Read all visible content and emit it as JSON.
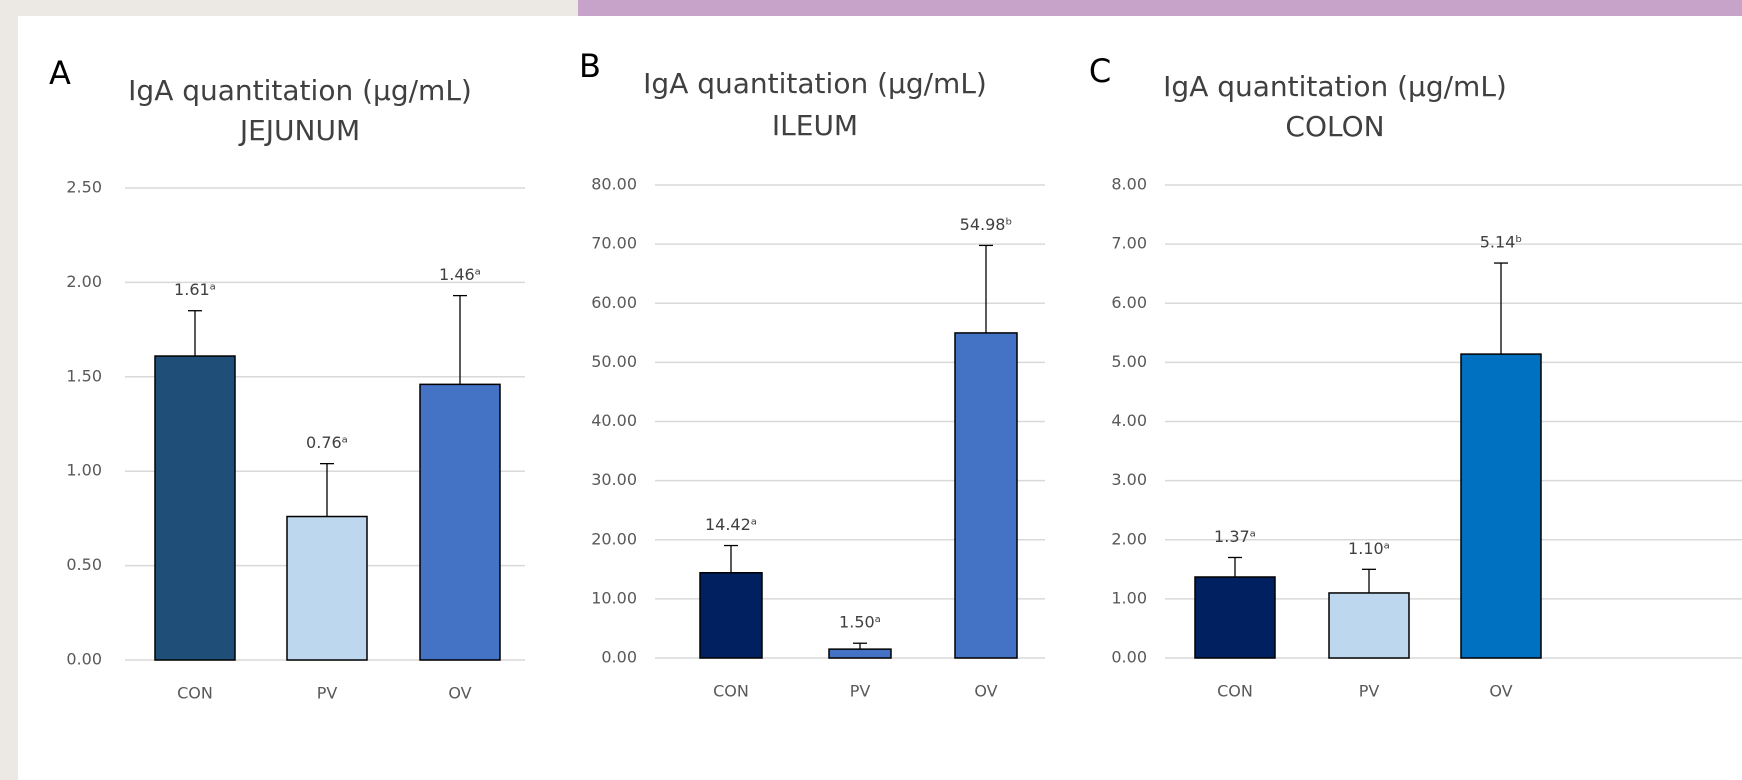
{
  "chart_data": [
    {
      "type": "bar",
      "panel_label": "A",
      "title": "IgA quantitation (µg/mL)",
      "subtitle": "JEJUNUM",
      "categories": [
        "CON",
        "PV",
        "OV"
      ],
      "values": [
        1.61,
        0.76,
        1.46
      ],
      "value_labels": [
        "1.61ᵃ",
        "0.76ᵃ",
        "1.46ᵃ"
      ],
      "errors": [
        0.24,
        0.28,
        0.47
      ],
      "colors": [
        "#1f4e79",
        "#bdd7ee",
        "#4472c4"
      ],
      "ylim": [
        0,
        2.5
      ],
      "yticks": [
        {
          "value": 0,
          "label": "0.00"
        },
        {
          "value": 0.5,
          "label": "0.50"
        },
        {
          "value": 1,
          "label": "1.00"
        },
        {
          "value": 1.5,
          "label": "1.50"
        },
        {
          "value": 2,
          "label": "2.00"
        },
        {
          "value": 2.5,
          "label": "2.50"
        }
      ],
      "grid": true
    },
    {
      "type": "bar",
      "panel_label": "B",
      "title": "IgA quantitation (µg/mL)",
      "subtitle": "ILEUM",
      "categories": [
        "CON",
        "PV",
        "OV"
      ],
      "values": [
        14.42,
        1.5,
        54.98
      ],
      "value_labels": [
        "14.42ᵃ",
        "1.50ᵃ",
        "54.98ᵇ"
      ],
      "errors": [
        4.6,
        1.0,
        14.8
      ],
      "colors": [
        "#002060",
        "#4472c4",
        "#4472c4"
      ],
      "ylim": [
        0,
        80
      ],
      "yticks": [
        {
          "value": 0,
          "label": "0.00"
        },
        {
          "value": 10,
          "label": "10.00"
        },
        {
          "value": 20,
          "label": "20.00"
        },
        {
          "value": 30,
          "label": "30.00"
        },
        {
          "value": 40,
          "label": "40.00"
        },
        {
          "value": 50,
          "label": "50.00"
        },
        {
          "value": 60,
          "label": "60.00"
        },
        {
          "value": 70,
          "label": "70.00"
        },
        {
          "value": 80,
          "label": "80.00"
        }
      ],
      "grid": true
    },
    {
      "type": "bar",
      "panel_label": "C",
      "title": "IgA quantitation (µg/mL)",
      "subtitle": "COLON",
      "categories": [
        "CON",
        "PV",
        "OV"
      ],
      "values": [
        1.37,
        1.1,
        5.14
      ],
      "value_labels": [
        "1.37ᵃ",
        "1.10ᵃ",
        "5.14ᵇ"
      ],
      "errors": [
        0.33,
        0.4,
        1.54
      ],
      "colors": [
        "#002060",
        "#bdd7ee",
        "#0070c0"
      ],
      "ylim": [
        0,
        8
      ],
      "yticks": [
        {
          "value": 0,
          "label": "0.00"
        },
        {
          "value": 1,
          "label": "1.00"
        },
        {
          "value": 2,
          "label": "2.00"
        },
        {
          "value": 3,
          "label": "3.00"
        },
        {
          "value": 4,
          "label": "4.00"
        },
        {
          "value": 5,
          "label": "5.00"
        },
        {
          "value": 6,
          "label": "6.00"
        },
        {
          "value": 7,
          "label": "7.00"
        },
        {
          "value": 8,
          "label": "8.00"
        }
      ],
      "grid": true
    }
  ]
}
